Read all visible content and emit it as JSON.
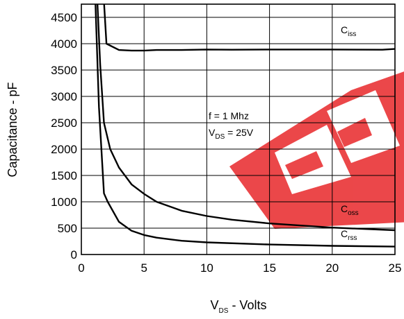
{
  "chart_data": {
    "type": "line",
    "ylabel": "Capacitance - pF",
    "xlabel_main": "V",
    "xlabel_sub": "DS",
    "xlabel_rest": " - Volts",
    "xlim": [
      0,
      25
    ],
    "ylim": [
      0,
      4750
    ],
    "xticks": [
      0,
      5,
      10,
      15,
      20,
      25
    ],
    "yticks": [
      0,
      500,
      1000,
      1500,
      2000,
      2500,
      3000,
      3500,
      4000,
      4500
    ],
    "grid": true,
    "series": [
      {
        "name_main": "C",
        "name_sub": "iss",
        "x": [
          1.5,
          2,
          3,
          4,
          5,
          6,
          8,
          10,
          12,
          15,
          20,
          24,
          25
        ],
        "y": [
          6000,
          4000,
          3880,
          3870,
          3870,
          3880,
          3880,
          3890,
          3885,
          3890,
          3890,
          3885,
          3900
        ]
      },
      {
        "name_main": "C",
        "name_sub": "oss",
        "x": [
          1.05,
          1.5,
          1.8,
          2.3,
          3,
          4,
          5,
          6,
          8,
          10,
          12,
          15,
          20,
          25
        ],
        "y": [
          6000,
          3600,
          2500,
          2000,
          1650,
          1330,
          1150,
          1000,
          830,
          730,
          660,
          590,
          510,
          460
        ]
      },
      {
        "name_main": "C",
        "name_sub": "rss",
        "x": [
          0.95,
          1.4,
          1.8,
          2.1,
          3,
          4,
          5,
          6,
          8,
          10,
          15,
          20,
          25
        ],
        "y": [
          6000,
          2800,
          1160,
          1000,
          620,
          450,
          370,
          320,
          260,
          230,
          190,
          165,
          150
        ]
      }
    ],
    "annotation": {
      "freq": "f = 1 Mhz",
      "vds_main": "V",
      "vds_sub": "DS",
      "vds_eq": " = 25V"
    }
  }
}
